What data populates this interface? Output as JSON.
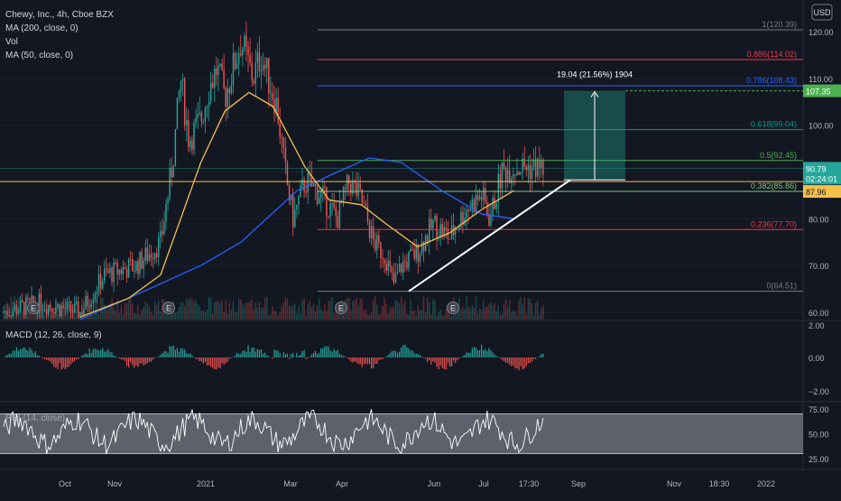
{
  "header": {
    "title": "Chewy, Inc., 4h, Cboe BZX",
    "indicators": [
      "MA (200, close, 0)",
      "Vol",
      "MA (50, close, 0)"
    ],
    "currency": "USD"
  },
  "price_axis": {
    "ticks": [
      "120.00",
      "110.00",
      "100.00",
      "90.00",
      "80.00",
      "70.00",
      "60.00"
    ]
  },
  "price_labels": {
    "target": "107.35",
    "current": "90.79",
    "countdown": "02:24:01",
    "ma": "87.96"
  },
  "colors": {
    "background": "#131722",
    "up": "#26a69a",
    "down": "#ef5350",
    "ma200": "#2962ff",
    "ma50": "#f5c04a",
    "fib_0": "#787b86",
    "fib_236": "#f23645",
    "fib_382": "#81c784",
    "fib_5": "#4caf50",
    "fib_618": "#089981",
    "fib_786": "#2962ff",
    "fib_886": "#f23645",
    "fib_1": "#787b86",
    "target_green": "#22ab94",
    "rsi_band": "#787b86"
  },
  "fib_levels": [
    {
      "label": "1(120.39)",
      "price": 120.39,
      "color": "#787b86"
    },
    {
      "label": "0.886(114.02)",
      "price": 114.02,
      "color": "#f23645"
    },
    {
      "label": "0.786(108.43)",
      "price": 108.43,
      "color": "#2962ff"
    },
    {
      "label": "0.618(99.04)",
      "price": 99.04,
      "color": "#089981"
    },
    {
      "label": "0.5(92.45)",
      "price": 92.45,
      "color": "#4caf50"
    },
    {
      "label": "0.382(85.86)",
      "price": 85.86,
      "color": "#81c784"
    },
    {
      "label": "0.236(77.70)",
      "price": 77.7,
      "color": "#f23645"
    },
    {
      "label": "0(64.51)",
      "price": 64.51,
      "color": "#787b86"
    }
  ],
  "target_box": {
    "label": "19.04 (21.56%) 1904",
    "from": 88.31,
    "to": 107.35
  },
  "macd": {
    "title": "MACD (12, 26, close, 9)",
    "ticks": [
      "2.00",
      "0.00",
      "−2.00"
    ]
  },
  "rsi": {
    "title": "RSI (14, close)",
    "ticks": [
      "75.00",
      "50.00",
      "25.00"
    ],
    "upper": 70,
    "lower": 30
  },
  "time_axis": [
    "Oct",
    "Nov",
    "2021",
    "Mar",
    "Apr",
    "Jun",
    "Jul",
    "17:30",
    "Sep",
    "Nov",
    "18:30",
    "2022"
  ],
  "events": [
    "E",
    "E",
    "E",
    "E"
  ],
  "chart_data": {
    "type": "candlestick",
    "title": "Chewy, Inc., 4h, Cboe BZX",
    "y_range": [
      58.5,
      124
    ],
    "series": [
      {
        "name": "MA (200, close, 0)",
        "points": [
          [
            0.1,
            58.5
          ],
          [
            0.16,
            63
          ],
          [
            0.25,
            70
          ],
          [
            0.3,
            75
          ],
          [
            0.37,
            86
          ],
          [
            0.42,
            90
          ],
          [
            0.46,
            93
          ],
          [
            0.5,
            92
          ],
          [
            0.55,
            86
          ],
          [
            0.6,
            81
          ],
          [
            0.64,
            80
          ]
        ]
      },
      {
        "name": "MA (50, close, 0)",
        "points": [
          [
            0.1,
            59
          ],
          [
            0.16,
            63
          ],
          [
            0.2,
            68
          ],
          [
            0.25,
            92
          ],
          [
            0.28,
            103
          ],
          [
            0.31,
            107
          ],
          [
            0.34,
            104
          ],
          [
            0.38,
            91
          ],
          [
            0.41,
            84
          ],
          [
            0.45,
            83
          ],
          [
            0.48,
            79
          ],
          [
            0.52,
            74
          ],
          [
            0.56,
            77
          ],
          [
            0.6,
            82
          ],
          [
            0.64,
            86
          ]
        ]
      }
    ],
    "trendline": [
      [
        64.5,
        88.3
      ]
    ],
    "macd_range": [
      -3,
      3
    ],
    "rsi_range": [
      15,
      85
    ]
  }
}
